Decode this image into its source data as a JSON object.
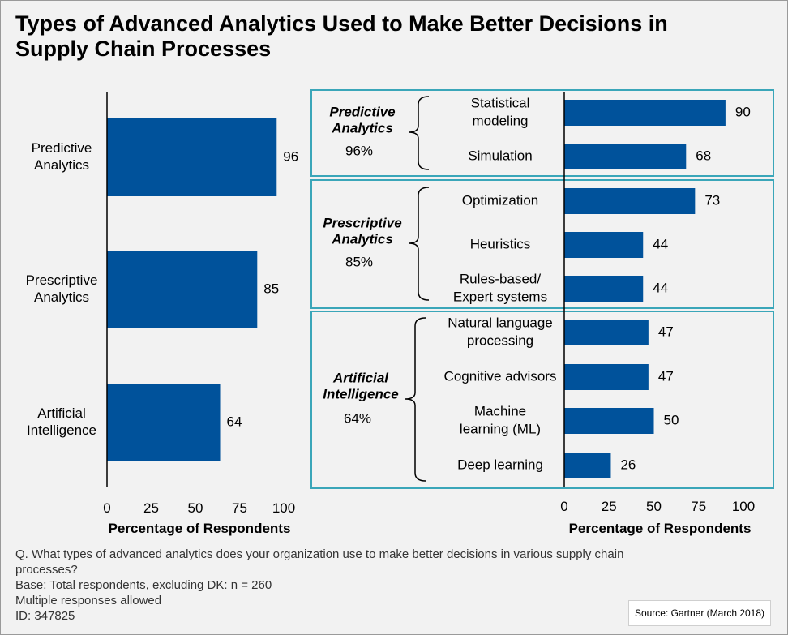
{
  "title": "Types of Advanced Analytics Used to Make Better Decisions in Supply Chain Processes",
  "colors": {
    "bar": "#00529b",
    "group_box": "#3aa6b9",
    "axis": "#000000"
  },
  "chart_data": [
    {
      "type": "bar",
      "orientation": "horizontal",
      "categories": [
        "Predictive\nAnalytics",
        "Prescriptive\nAnalytics",
        "Artificial\nIntelligence"
      ],
      "values": [
        96,
        85,
        64
      ],
      "xlabel": "Percentage of Respondents",
      "xlim": [
        0,
        100
      ],
      "xticks": [
        0,
        25,
        50,
        75,
        100
      ],
      "grid": false
    },
    {
      "type": "bar",
      "orientation": "horizontal",
      "categories": [
        "Statistical\nmodeling",
        "Simulation",
        "Optimization",
        "Heuristics",
        "Rules-based/\nExpert systems",
        "Natural language\nprocessing",
        "Cognitive advisors",
        "Machine\nlearning (ML)",
        "Deep learning"
      ],
      "values": [
        90,
        68,
        73,
        44,
        44,
        47,
        47,
        50,
        26
      ],
      "groups": [
        {
          "name": "Predictive\nAnalytics",
          "pct": "96%",
          "start": 0,
          "end": 1
        },
        {
          "name": "Prescriptive\nAnalytics",
          "pct": "85%",
          "start": 2,
          "end": 4
        },
        {
          "name": "Artificial\nIntelligence",
          "pct": "64%",
          "start": 5,
          "end": 8
        }
      ],
      "xlabel": "Percentage of Respondents",
      "xlim": [
        0,
        100
      ],
      "xticks": [
        0,
        25,
        50,
        75,
        100
      ],
      "grid": false
    }
  ],
  "footer": {
    "question": "Q. What types of advanced analytics does your organization use to make better decisions in various supply chain processes?",
    "base": "Base: Total respondents, excluding DK: n = 260",
    "multiple": "Multiple responses allowed",
    "id": "ID: 347825"
  },
  "source": "Source: Gartner (March 2018)"
}
